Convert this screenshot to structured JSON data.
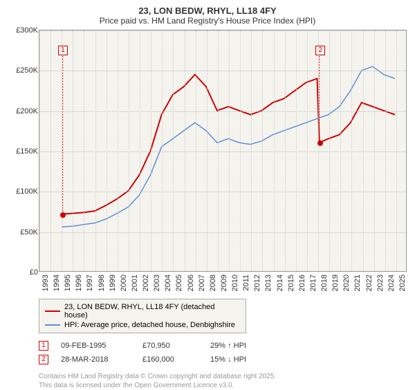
{
  "title": "23, LON BEDW, RHYL, LL18 4FY",
  "subtitle": "Price paid vs. HM Land Registry's House Price Index (HPI)",
  "chart": {
    "type": "line",
    "background_color": "#f5f3ee",
    "grid_color": "#cccccc",
    "ylim": [
      0,
      300000
    ],
    "ytick_step": 50000,
    "yticks_labels": [
      "£0",
      "£50K",
      "£100K",
      "£150K",
      "£200K",
      "£250K",
      "£300K"
    ],
    "xlim": [
      1993,
      2026
    ],
    "xticks": [
      1993,
      1994,
      1995,
      1996,
      1997,
      1998,
      1999,
      2000,
      2001,
      2002,
      2003,
      2004,
      2005,
      2006,
      2007,
      2008,
      2009,
      2010,
      2011,
      2012,
      2013,
      2014,
      2015,
      2016,
      2017,
      2018,
      2019,
      2020,
      2021,
      2022,
      2023,
      2024,
      2025
    ],
    "series": [
      {
        "name": "23, LON BEDW, RHYL, LL18 4FY (detached house)",
        "color": "#cc0000",
        "line_width": 2,
        "x": [
          1995.1,
          1996,
          1997,
          1998,
          1999,
          2000,
          2001,
          2002,
          2003,
          2004,
          2005,
          2006,
          2007,
          2008,
          2009,
          2010,
          2011,
          2012,
          2013,
          2014,
          2015,
          2016,
          2017,
          2018,
          2018.2,
          2019,
          2020,
          2021,
          2022,
          2023,
          2024,
          2025
        ],
        "y": [
          70950,
          72000,
          73000,
          75000,
          82000,
          90000,
          100000,
          120000,
          150000,
          195000,
          220000,
          230000,
          245000,
          230000,
          200000,
          205000,
          200000,
          195000,
          200000,
          210000,
          215000,
          225000,
          235000,
          240000,
          160000,
          165000,
          170000,
          185000,
          210000,
          205000,
          200000,
          195000
        ]
      },
      {
        "name": "HPI: Average price, detached house, Denbighshire",
        "color": "#5b8fd6",
        "line_width": 1.5,
        "x": [
          1995,
          1996,
          1997,
          1998,
          1999,
          2000,
          2001,
          2002,
          2003,
          2004,
          2005,
          2006,
          2007,
          2008,
          2009,
          2010,
          2011,
          2012,
          2013,
          2014,
          2015,
          2016,
          2017,
          2018,
          2019,
          2020,
          2021,
          2022,
          2023,
          2024,
          2025
        ],
        "y": [
          55000,
          56000,
          58000,
          60000,
          65000,
          72000,
          80000,
          95000,
          120000,
          155000,
          165000,
          175000,
          185000,
          175000,
          160000,
          165000,
          160000,
          158000,
          162000,
          170000,
          175000,
          180000,
          185000,
          190000,
          195000,
          205000,
          225000,
          250000,
          255000,
          245000,
          240000
        ]
      }
    ],
    "markers": [
      {
        "label": "1",
        "x": 1995.1,
        "y": 70950,
        "box_y": 275000
      },
      {
        "label": "2",
        "x": 2018.2,
        "y": 160000,
        "box_y": 275000
      }
    ]
  },
  "legend": {
    "items": [
      {
        "color": "#cc0000",
        "label": "23, LON BEDW, RHYL, LL18 4FY (detached house)"
      },
      {
        "color": "#5b8fd6",
        "label": "HPI: Average price, detached house, Denbighshire"
      }
    ]
  },
  "sales": [
    {
      "num": "1",
      "date": "09-FEB-1995",
      "price": "£70,950",
      "diff": "29% ↑ HPI"
    },
    {
      "num": "2",
      "date": "28-MAR-2018",
      "price": "£160,000",
      "diff": "15% ↓ HPI"
    }
  ],
  "footer_line1": "Contains HM Land Registry data © Crown copyright and database right 2025.",
  "footer_line2": "This data is licensed under the Open Government Licence v3.0."
}
